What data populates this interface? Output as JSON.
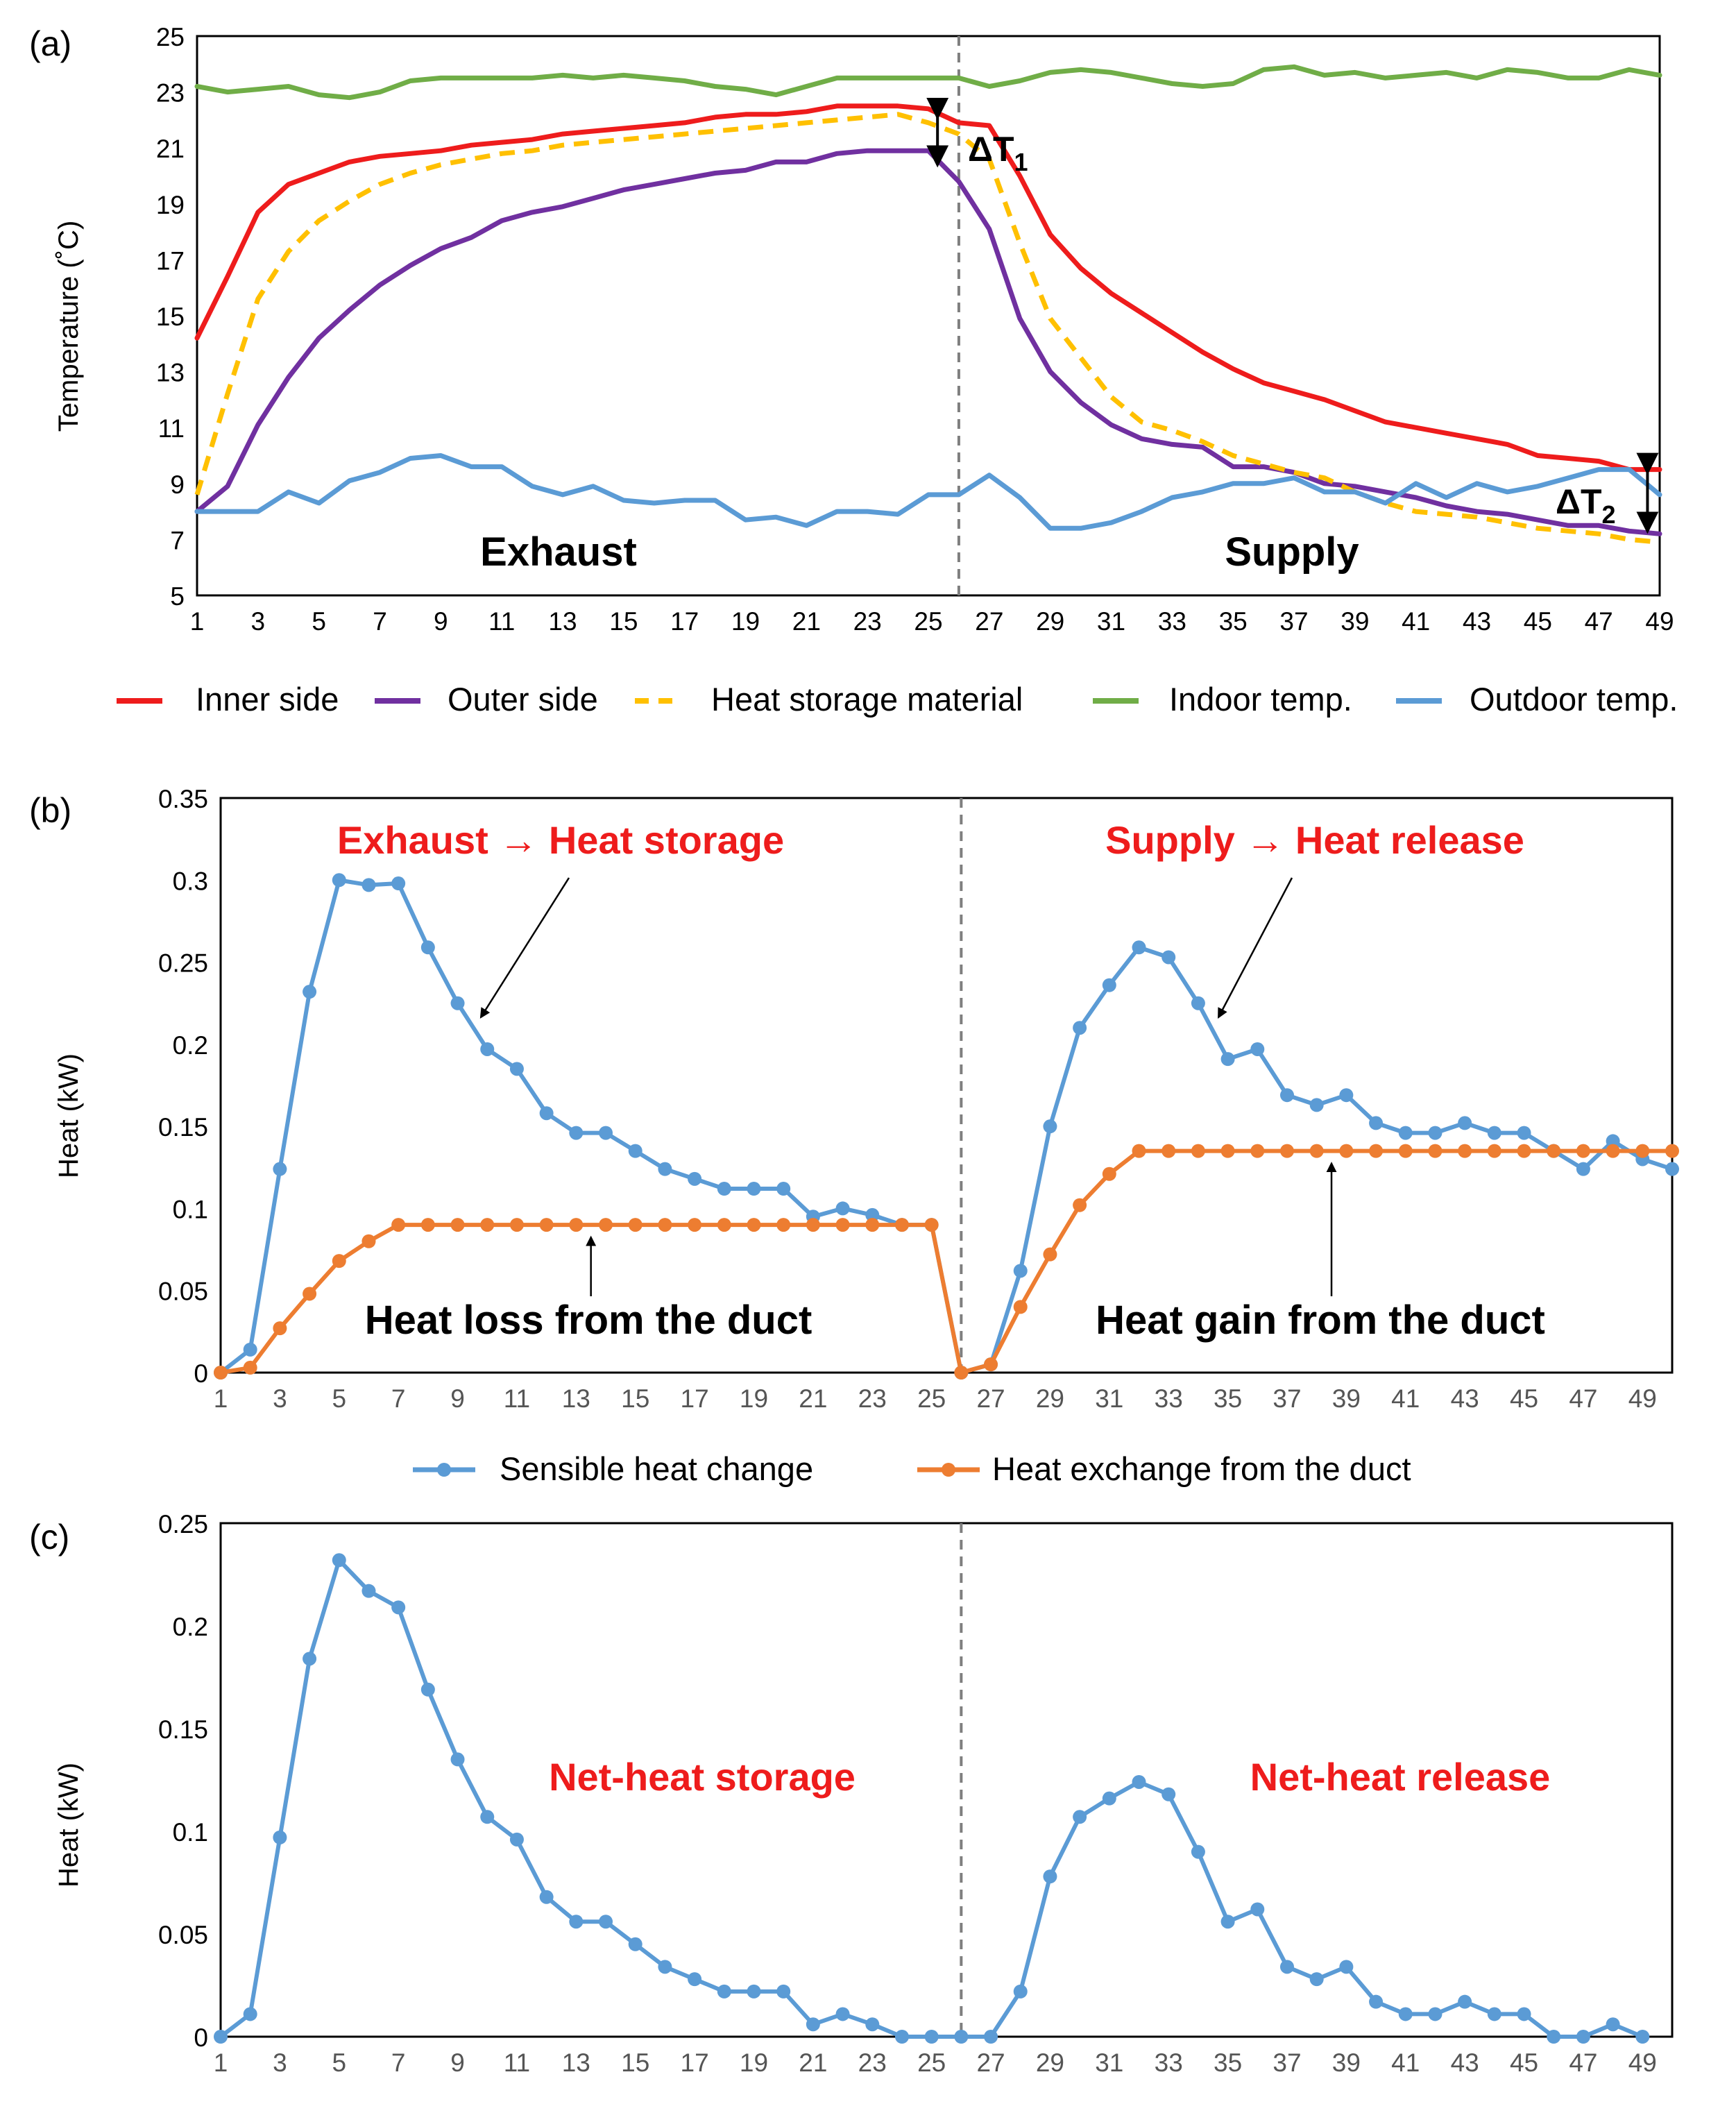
{
  "colors": {
    "inner": "#ee1c1c",
    "outer": "#7030a0",
    "storage": "#ffc000",
    "indoor": "#70ad47",
    "outdoor": "#5b9bd5",
    "sensible": "#5b9bd5",
    "exchange": "#ed7d31",
    "net": "#5b9bd5",
    "annotation": "#ee1c1c"
  },
  "chart_data": [
    {
      "type": "line",
      "panel_label": "(a)",
      "ylabel": "Temperature (˚C)",
      "ylim": [
        5,
        25
      ],
      "xlim": [
        1,
        49
      ],
      "yticks": [
        "5",
        "7",
        "9",
        "11",
        "13",
        "15",
        "17",
        "19",
        "21",
        "23",
        "25"
      ],
      "xticks": [
        "1",
        "3",
        "5",
        "7",
        "9",
        "11",
        "13",
        "15",
        "17",
        "19",
        "21",
        "23",
        "25",
        "27",
        "29",
        "31",
        "33",
        "35",
        "37",
        "39",
        "41",
        "43",
        "45",
        "47",
        "49"
      ],
      "divider_x": 26,
      "annotations": {
        "exhaust": "Exhaust",
        "supply": "Supply",
        "dt1": "ΔT",
        "dt1_sub": "1",
        "dt2": "ΔT",
        "dt2_sub": "2"
      },
      "series": [
        {
          "name": "Inner side",
          "color_key": "inner",
          "dashed": false,
          "values": [
            14.2,
            16.4,
            18.7,
            19.7,
            20.1,
            20.5,
            20.7,
            20.8,
            20.9,
            21.1,
            21.2,
            21.3,
            21.5,
            21.6,
            21.7,
            21.8,
            21.9,
            22.1,
            22.2,
            22.2,
            22.3,
            22.5,
            22.5,
            22.5,
            22.4,
            21.9,
            21.8,
            20.0,
            17.9,
            16.7,
            15.8,
            15.1,
            14.4,
            13.7,
            13.1,
            12.6,
            12.3,
            12.0,
            11.6,
            11.2,
            11.0,
            10.8,
            10.6,
            10.4,
            10.0,
            9.9,
            9.8,
            9.5,
            9.5
          ]
        },
        {
          "name": "Outer side",
          "color_key": "outer",
          "dashed": false,
          "values": [
            8.0,
            8.9,
            11.1,
            12.8,
            14.2,
            15.2,
            16.1,
            16.8,
            17.4,
            17.8,
            18.4,
            18.7,
            18.9,
            19.2,
            19.5,
            19.7,
            19.9,
            20.1,
            20.2,
            20.5,
            20.5,
            20.8,
            20.9,
            20.9,
            20.9,
            19.8,
            18.1,
            14.9,
            13.0,
            11.9,
            11.1,
            10.6,
            10.4,
            10.3,
            9.6,
            9.6,
            9.4,
            9.0,
            8.9,
            8.7,
            8.5,
            8.2,
            8.0,
            7.9,
            7.7,
            7.5,
            7.5,
            7.3,
            7.2
          ]
        },
        {
          "name": "Heat storage material",
          "color_key": "storage",
          "dashed": true,
          "values": [
            8.6,
            12.2,
            15.6,
            17.3,
            18.4,
            19.1,
            19.7,
            20.1,
            20.4,
            20.6,
            20.8,
            20.9,
            21.1,
            21.2,
            21.3,
            21.4,
            21.5,
            21.6,
            21.7,
            21.8,
            21.9,
            22.0,
            22.1,
            22.2,
            21.9,
            21.5,
            20.6,
            17.6,
            14.9,
            13.5,
            12.1,
            11.2,
            10.9,
            10.5,
            10.0,
            9.7,
            9.4,
            9.2,
            8.7,
            8.3,
            8.0,
            7.9,
            7.8,
            7.6,
            7.4,
            7.3,
            7.2,
            7.0,
            6.9
          ]
        },
        {
          "name": "Indoor temp.",
          "color_key": "indoor",
          "dashed": false,
          "values": [
            23.2,
            23.0,
            23.1,
            23.2,
            22.9,
            22.8,
            23.0,
            23.4,
            23.5,
            23.5,
            23.5,
            23.5,
            23.6,
            23.5,
            23.6,
            23.5,
            23.4,
            23.2,
            23.1,
            22.9,
            23.2,
            23.5,
            23.5,
            23.5,
            23.5,
            23.5,
            23.2,
            23.4,
            23.7,
            23.8,
            23.7,
            23.5,
            23.3,
            23.2,
            23.3,
            23.8,
            23.9,
            23.6,
            23.7,
            23.5,
            23.6,
            23.7,
            23.5,
            23.8,
            23.7,
            23.5,
            23.5,
            23.8,
            23.6
          ]
        },
        {
          "name": "Outdoor temp.",
          "color_key": "outdoor",
          "dashed": false,
          "values": [
            8.0,
            8.0,
            8.0,
            8.7,
            8.3,
            9.1,
            9.4,
            9.9,
            10.0,
            9.6,
            9.6,
            8.9,
            8.6,
            8.9,
            8.4,
            8.3,
            8.4,
            8.4,
            7.7,
            7.8,
            7.5,
            8.0,
            8.0,
            7.9,
            8.6,
            8.6,
            9.3,
            8.5,
            7.4,
            7.4,
            7.6,
            8.0,
            8.5,
            8.7,
            9.0,
            9.0,
            9.2,
            8.7,
            8.7,
            8.3,
            9.0,
            8.5,
            9.0,
            8.7,
            8.9,
            9.2,
            9.5,
            9.5,
            8.6
          ]
        }
      ]
    },
    {
      "type": "line",
      "panel_label": "(b)",
      "ylabel": "Heat (kW)",
      "ylim": [
        0,
        0.35
      ],
      "xlim": [
        1,
        50
      ],
      "yticks": [
        "0",
        "0.05",
        "0.1",
        "0.15",
        "0.2",
        "0.25",
        "0.3",
        "0.35"
      ],
      "xticks": [
        "1",
        "3",
        "5",
        "7",
        "9",
        "11",
        "13",
        "15",
        "17",
        "19",
        "21",
        "23",
        "25",
        "27",
        "29",
        "31",
        "33",
        "35",
        "37",
        "39",
        "41",
        "43",
        "45",
        "47",
        "49"
      ],
      "divider_x": 26,
      "annotations": {
        "left_title": "Exhaust → Heat storage",
        "right_title": "Supply → Heat release",
        "left_bottom": "Heat loss from the duct",
        "right_bottom": "Heat gain from the duct"
      },
      "series": [
        {
          "name": "Sensible heat change",
          "color_key": "sensible",
          "markers": true,
          "values": [
            0,
            0.014,
            0.124,
            0.232,
            0.3,
            0.297,
            0.298,
            0.259,
            0.225,
            0.197,
            0.185,
            0.158,
            0.146,
            0.146,
            0.135,
            0.124,
            0.118,
            0.112,
            0.112,
            0.112,
            0.095,
            0.1,
            0.096,
            0.09,
            0.09,
            0,
            0.005,
            0.062,
            0.15,
            0.21,
            0.236,
            0.259,
            0.253,
            0.225,
            0.191,
            0.197,
            0.169,
            0.163,
            0.169,
            0.152,
            0.146,
            0.146,
            0.152,
            0.146,
            0.146,
            0.135,
            0.124,
            0.141,
            0.13,
            0.124
          ]
        },
        {
          "name": "Heat exchange from the duct",
          "color_key": "exchange",
          "markers": true,
          "values": [
            0,
            0.003,
            0.027,
            0.048,
            0.068,
            0.08,
            0.09,
            0.09,
            0.09,
            0.09,
            0.09,
            0.09,
            0.09,
            0.09,
            0.09,
            0.09,
            0.09,
            0.09,
            0.09,
            0.09,
            0.09,
            0.09,
            0.09,
            0.09,
            0.09,
            0,
            0.005,
            0.04,
            0.072,
            0.102,
            0.121,
            0.135,
            0.135,
            0.135,
            0.135,
            0.135,
            0.135,
            0.135,
            0.135,
            0.135,
            0.135,
            0.135,
            0.135,
            0.135,
            0.135,
            0.135,
            0.135,
            0.135,
            0.135,
            0.135
          ]
        }
      ]
    },
    {
      "type": "line",
      "panel_label": "(c)",
      "ylabel": "Heat (kW)",
      "ylim": [
        0,
        0.25
      ],
      "xlim": [
        1,
        50
      ],
      "yticks": [
        "0",
        "0.05",
        "0.1",
        "0.15",
        "0.2",
        "0.25"
      ],
      "xticks": [
        "1",
        "3",
        "5",
        "7",
        "9",
        "11",
        "13",
        "15",
        "17",
        "19",
        "21",
        "23",
        "25",
        "27",
        "29",
        "31",
        "33",
        "35",
        "37",
        "39",
        "41",
        "43",
        "45",
        "47",
        "49"
      ],
      "divider_x": 26,
      "annotations": {
        "left_mid": "Net-heat storage",
        "right_mid": "Net-heat release"
      },
      "series": [
        {
          "name": "",
          "color_key": "net",
          "markers": true,
          "values": [
            0,
            0.011,
            0.097,
            0.184,
            0.232,
            0.217,
            0.209,
            0.169,
            0.135,
            0.107,
            0.096,
            0.068,
            0.056,
            0.056,
            0.045,
            0.034,
            0.028,
            0.022,
            0.022,
            0.022,
            0.006,
            0.011,
            0.006,
            0,
            0,
            0,
            0,
            0.022,
            0.078,
            0.107,
            0.116,
            0.124,
            0.118,
            0.09,
            0.056,
            0.062,
            0.034,
            0.028,
            0.034,
            0.017,
            0.011,
            0.011,
            0.017,
            0.011,
            0.011,
            0,
            0,
            0.006,
            0
          ]
        }
      ]
    }
  ]
}
